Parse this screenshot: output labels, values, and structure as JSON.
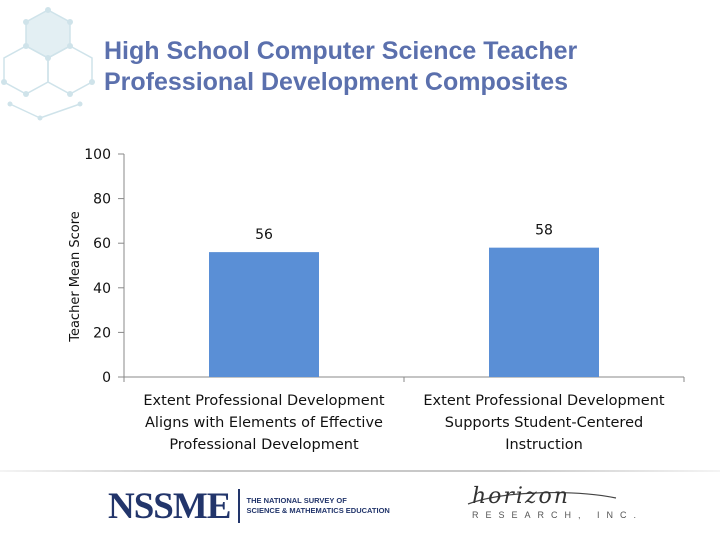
{
  "title": {
    "line1": "High School Computer Science Teacher",
    "line2": "Professional Development Composites"
  },
  "chart_data": {
    "type": "bar",
    "title": "High School Computer Science Teacher Professional Development Composites",
    "xlabel": "",
    "ylabel": "Teacher Mean Score",
    "ylim": [
      0,
      100
    ],
    "yticks": [
      "0",
      "20",
      "40",
      "60",
      "80",
      "100"
    ],
    "grid": false,
    "categories": [
      [
        "Extent Professional Development",
        "Aligns with Elements of Effective",
        "Professional Development"
      ],
      [
        "Extent Professional Development",
        "Supports Student-Centered",
        "Instruction"
      ]
    ],
    "values": [
      56,
      58
    ],
    "data_labels": [
      "56",
      "58"
    ],
    "bar_color": "#5a8fd6"
  },
  "footer": {
    "nssme_logo": "NSSME",
    "nssme_tagline": [
      "THE NATIONAL SURVEY OF",
      "SCIENCE & MATHEMATICS EDUCATION"
    ],
    "horizon_logo": "horizon",
    "horizon_sub": "RESEARCH, INC."
  }
}
